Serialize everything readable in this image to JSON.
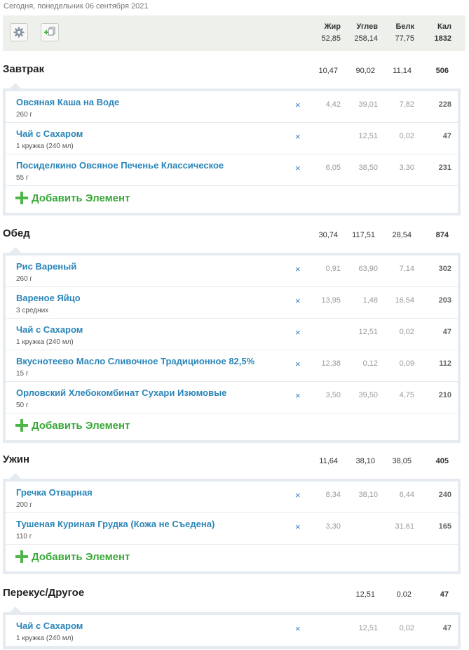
{
  "date_text": "Сегодня, понедельник 06 сентября 2021",
  "summary": {
    "headers": [
      "Жир",
      "Углев",
      "Белк",
      "Кал"
    ],
    "values": [
      "52,85",
      "258,14",
      "77,75",
      "1832"
    ],
    "settings_icon": "gear-icon",
    "copy_icon": "copy-add-icon"
  },
  "add_label": "Добавить Элемент",
  "delete_glyph": "×",
  "meals": [
    {
      "title": "Завтрак",
      "totals": [
        "10,47",
        "90,02",
        "11,14",
        "506"
      ],
      "items": [
        {
          "name": "Овсяная Каша на Воде",
          "portion": "260 г",
          "fat": "4,42",
          "carb": "39,01",
          "prot": "7,82",
          "kcal": "228"
        },
        {
          "name": "Чай с Сахаром",
          "portion": "1 кружка (240 мл)",
          "fat": "",
          "carb": "12,51",
          "prot": "0,02",
          "kcal": "47"
        },
        {
          "name": "Посиделкино Овсяное Печенье Классическое",
          "portion": "55 г",
          "fat": "6,05",
          "carb": "38,50",
          "prot": "3,30",
          "kcal": "231"
        }
      ]
    },
    {
      "title": "Обед",
      "totals": [
        "30,74",
        "117,51",
        "28,54",
        "874"
      ],
      "items": [
        {
          "name": "Рис Вареный",
          "portion": "260 г",
          "fat": "0,91",
          "carb": "63,90",
          "prot": "7,14",
          "kcal": "302"
        },
        {
          "name": "Вареное Яйцо",
          "portion": "3 средних",
          "fat": "13,95",
          "carb": "1,48",
          "prot": "16,54",
          "kcal": "203"
        },
        {
          "name": "Чай с Сахаром",
          "portion": "1 кружка (240 мл)",
          "fat": "",
          "carb": "12,51",
          "prot": "0,02",
          "kcal": "47"
        },
        {
          "name": "Вкуснотеево Масло Сливочное Традиционное 82,5%",
          "portion": "15 г",
          "fat": "12,38",
          "carb": "0,12",
          "prot": "0,09",
          "kcal": "112"
        },
        {
          "name": "Орловский Хлебокомбинат Сухари Изюмовые",
          "portion": "50 г",
          "fat": "3,50",
          "carb": "39,50",
          "prot": "4,75",
          "kcal": "210"
        }
      ]
    },
    {
      "title": "Ужин",
      "totals": [
        "11,64",
        "38,10",
        "38,05",
        "405"
      ],
      "items": [
        {
          "name": "Гречка Отварная",
          "portion": "200 г",
          "fat": "8,34",
          "carb": "38,10",
          "prot": "6,44",
          "kcal": "240"
        },
        {
          "name": "Тушеная Куриная Грудка (Кожа не Съедена)",
          "portion": "110 г",
          "fat": "3,30",
          "carb": "",
          "prot": "31,61",
          "kcal": "165"
        }
      ]
    },
    {
      "title": "Перекус/Другое",
      "totals": [
        "",
        "12,51",
        "0,02",
        "47"
      ],
      "items": [
        {
          "name": "Чай с Сахаром",
          "portion": "1 кружка (240 мл)",
          "fat": "",
          "carb": "12,51",
          "prot": "0,02",
          "kcal": "47"
        }
      ]
    }
  ]
}
